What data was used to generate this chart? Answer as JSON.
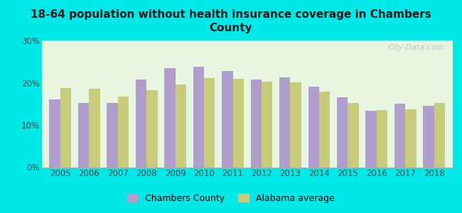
{
  "title": "18-64 population without health insurance coverage in Chambers\nCounty",
  "years": [
    2005,
    2006,
    2007,
    2008,
    2009,
    2010,
    2011,
    2012,
    2013,
    2014,
    2015,
    2016,
    2017,
    2018
  ],
  "chambers": [
    16.0,
    15.2,
    15.2,
    20.7,
    23.5,
    23.8,
    22.8,
    20.7,
    21.3,
    19.0,
    16.5,
    13.3,
    15.1,
    14.5
  ],
  "alabama": [
    18.7,
    18.6,
    16.8,
    18.2,
    19.6,
    21.1,
    21.0,
    20.2,
    20.1,
    17.9,
    15.2,
    13.6,
    13.7,
    15.2
  ],
  "chambers_color": "#b09fcc",
  "alabama_color": "#c8cc7a",
  "background_outer": "#00e8e8",
  "background_plot": "#e8f5e0",
  "tick_color": "#444444",
  "title_color": "#1a1a1a",
  "ylim": [
    0,
    30
  ],
  "yticks": [
    0,
    10,
    20,
    30
  ],
  "ytick_labels": [
    "0%",
    "10%",
    "20%",
    "30%"
  ],
  "bar_width": 0.38,
  "legend_chambers": "Chambers County",
  "legend_alabama": "Alabama average",
  "watermark": "City-Data.com"
}
